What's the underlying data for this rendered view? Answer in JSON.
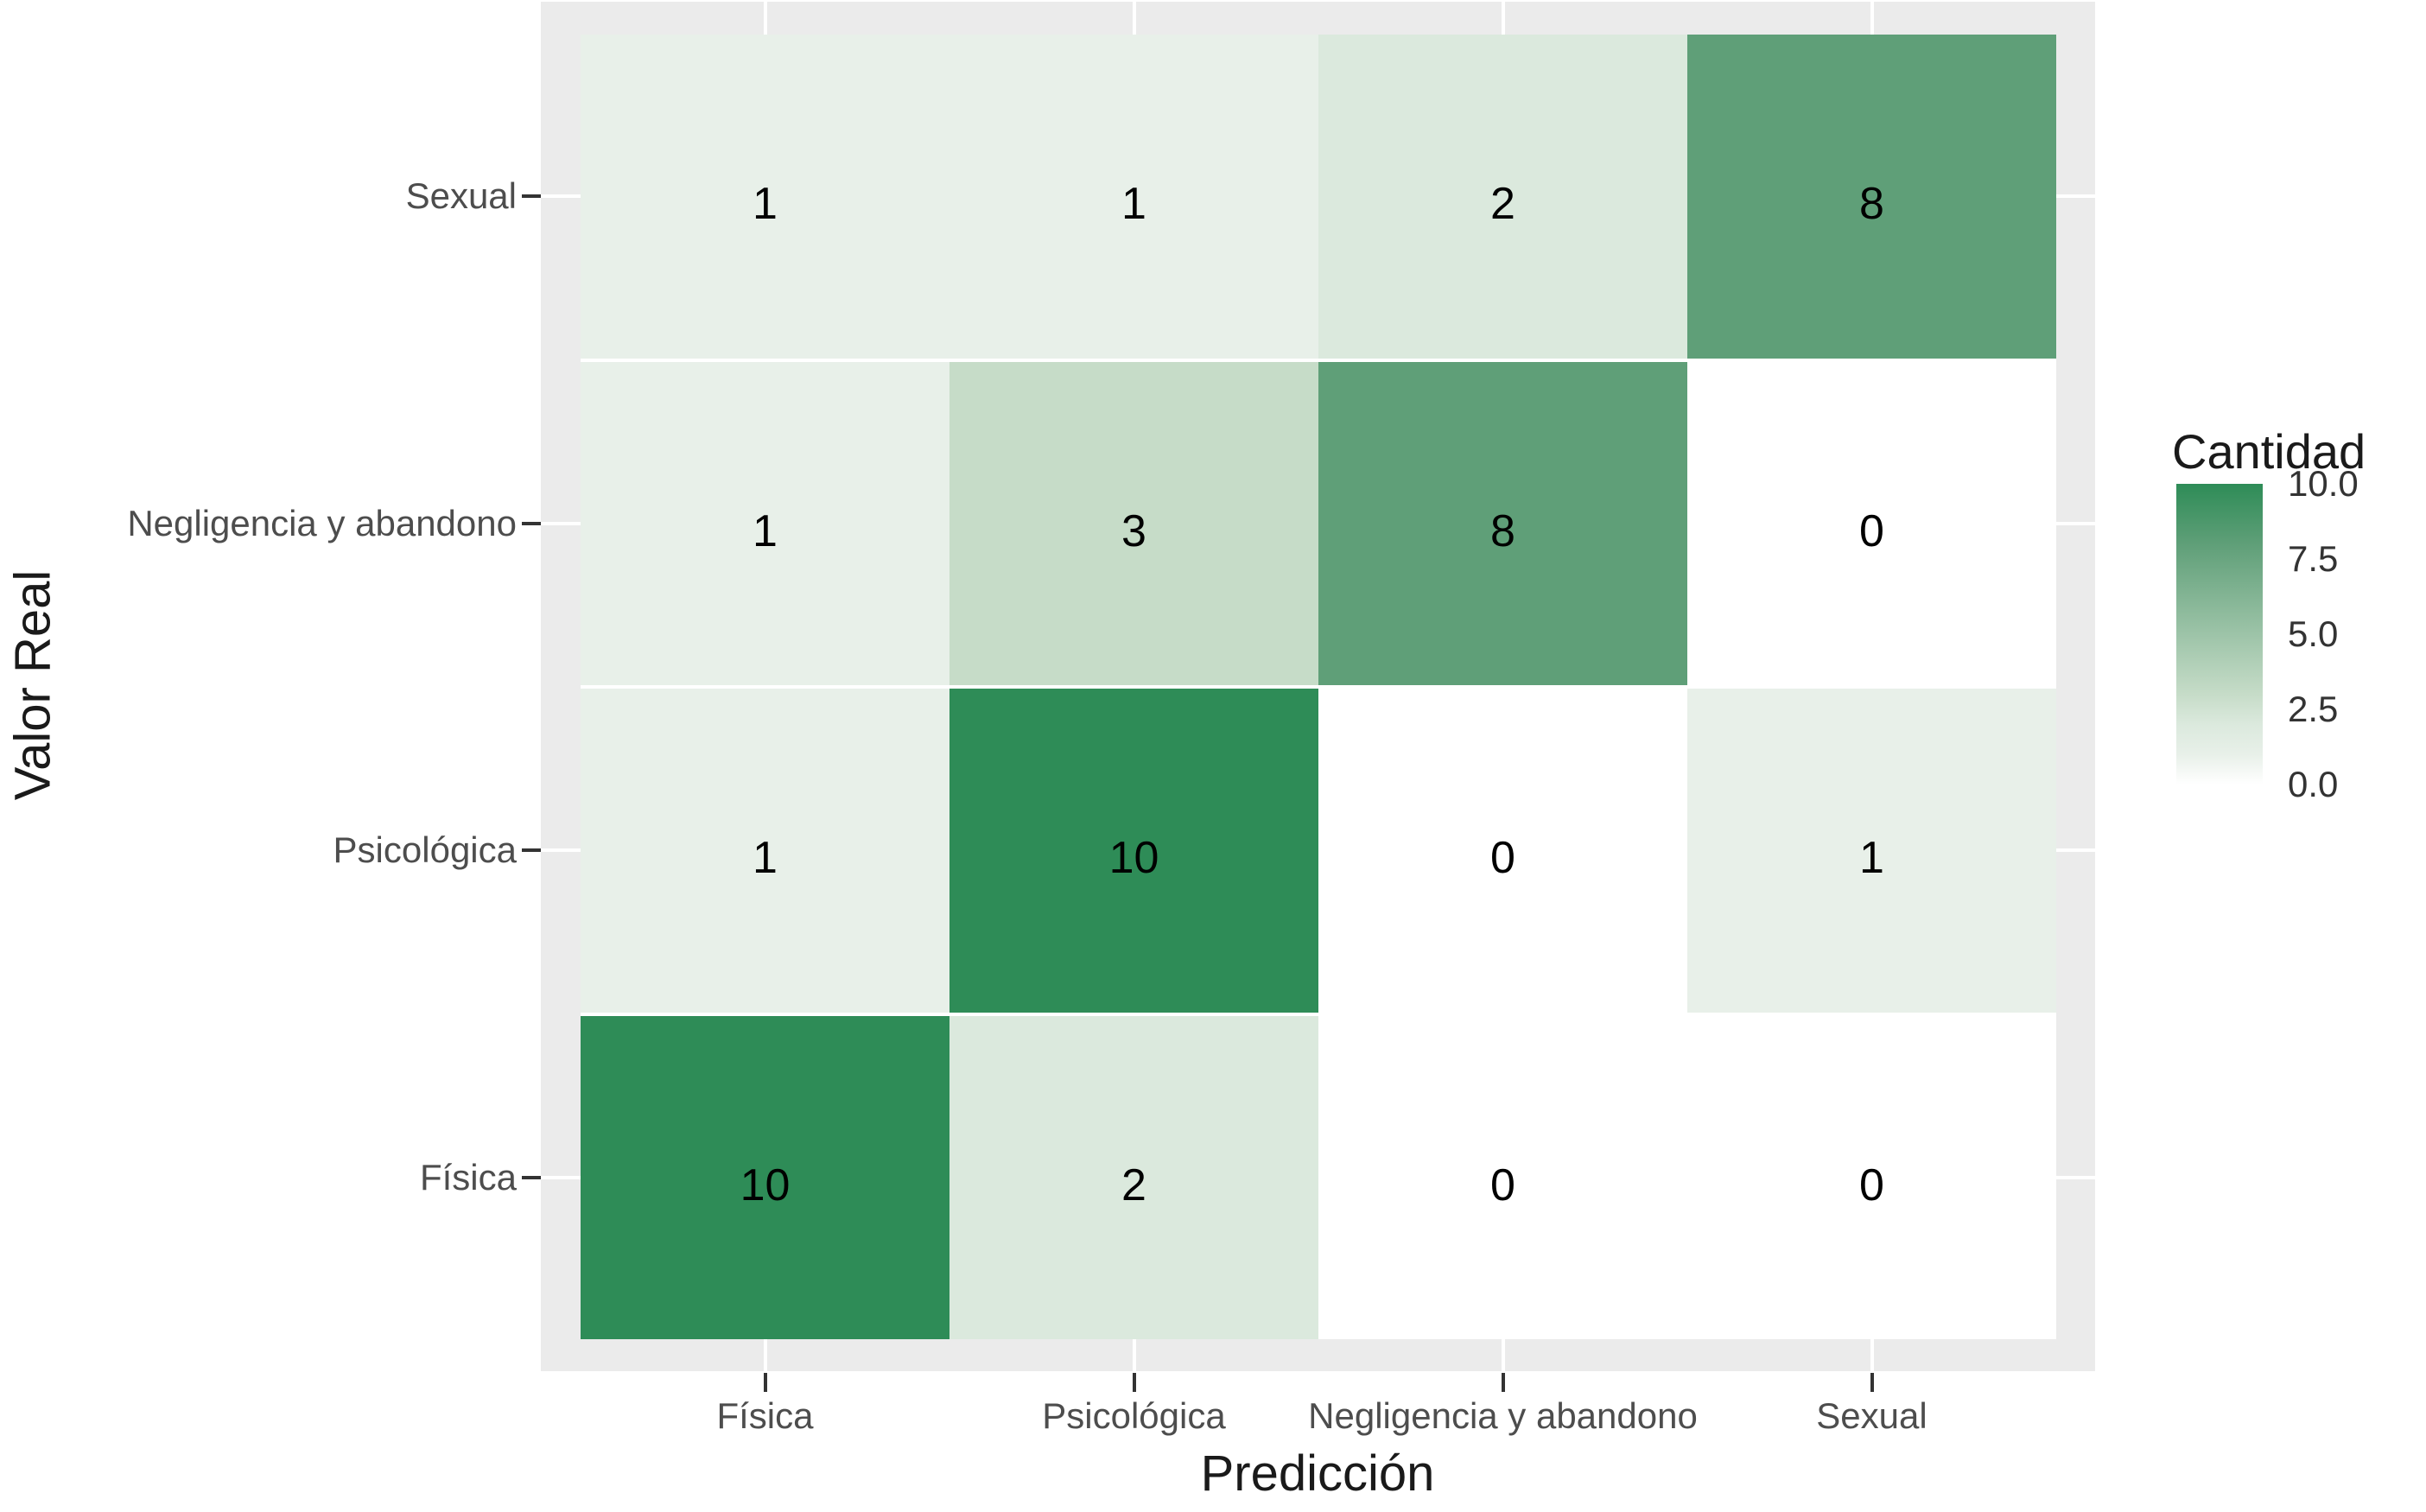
{
  "chart_data": {
    "type": "heatmap",
    "title": "",
    "xlabel": "Predicción",
    "ylabel": "Valor Real",
    "x_categories": [
      "Física",
      "Psicológica",
      "Negligencia y abandono",
      "Sexual"
    ],
    "y_categories_top_to_bottom": [
      "Sexual",
      "Negligencia y abandono",
      "Psicológica",
      "Física"
    ],
    "matrix_rows_top_to_bottom": [
      [
        1,
        1,
        2,
        8
      ],
      [
        1,
        3,
        8,
        0
      ],
      [
        1,
        10,
        0,
        1
      ],
      [
        10,
        2,
        0,
        0
      ]
    ],
    "legend": {
      "title": "Cantidad",
      "ticks": [
        "10.0",
        "7.5",
        "5.0",
        "2.5",
        "0.0"
      ],
      "min": 0,
      "max": 10,
      "position": "right"
    },
    "value_colors": {
      "0": "#ffffff",
      "1": "#e8f0e9",
      "2": "#dbe9dd",
      "3": "#c6dcc8",
      "8": "#5f9f78",
      "10": "#2e8c57"
    },
    "colors": {
      "gradient_high": "#2e8c57",
      "gradient_low": "#ffffff",
      "panel_background": "#ebebeb",
      "grid_line": "#ffffff",
      "tick_text": "#4d4d4d",
      "title_text": "#1a1a1a",
      "cell_value_text": "#000000"
    },
    "grid": true
  }
}
